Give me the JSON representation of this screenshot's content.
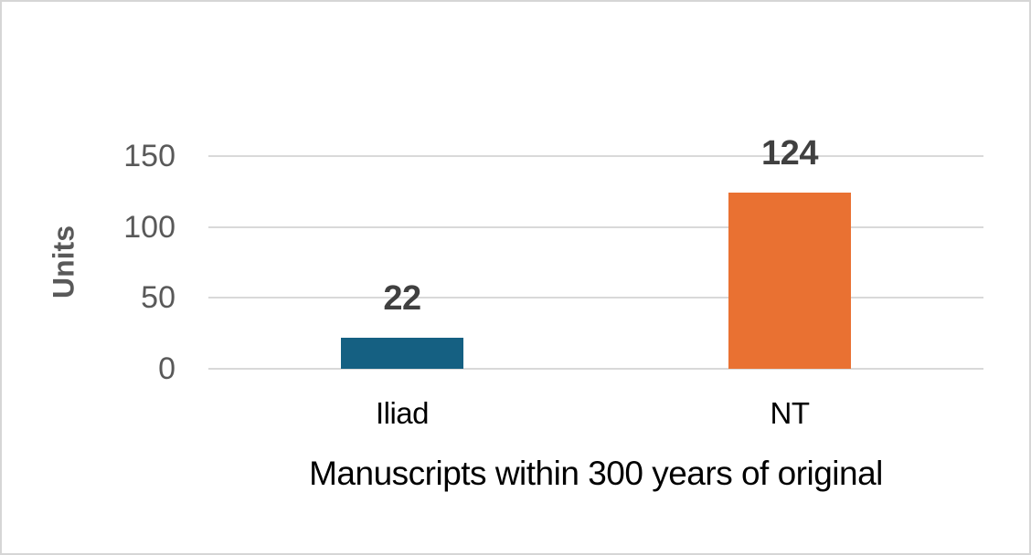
{
  "chart_data": {
    "type": "bar",
    "categories": [
      "Iliad",
      "NT"
    ],
    "values": [
      22,
      124
    ],
    "data_labels": [
      "22",
      "124"
    ],
    "bar_colors": [
      "#156082",
      "#E97132"
    ],
    "title": "",
    "xlabel": "Manuscripts within 300 years of original",
    "ylabel": "Units",
    "ylim": [
      0,
      150
    ],
    "yticks": [
      0,
      50,
      100,
      150
    ],
    "grid": true,
    "legend": false
  },
  "colors": {
    "background": "#FFFFFF",
    "canvas_border": "#D6D6D6",
    "gridline": "#D9D9D9",
    "tick_text": "#595959",
    "y_axis_title_text": "#595959",
    "data_label_text": "#404040",
    "category_text": "#000000",
    "x_axis_title_text": "#000000"
  }
}
